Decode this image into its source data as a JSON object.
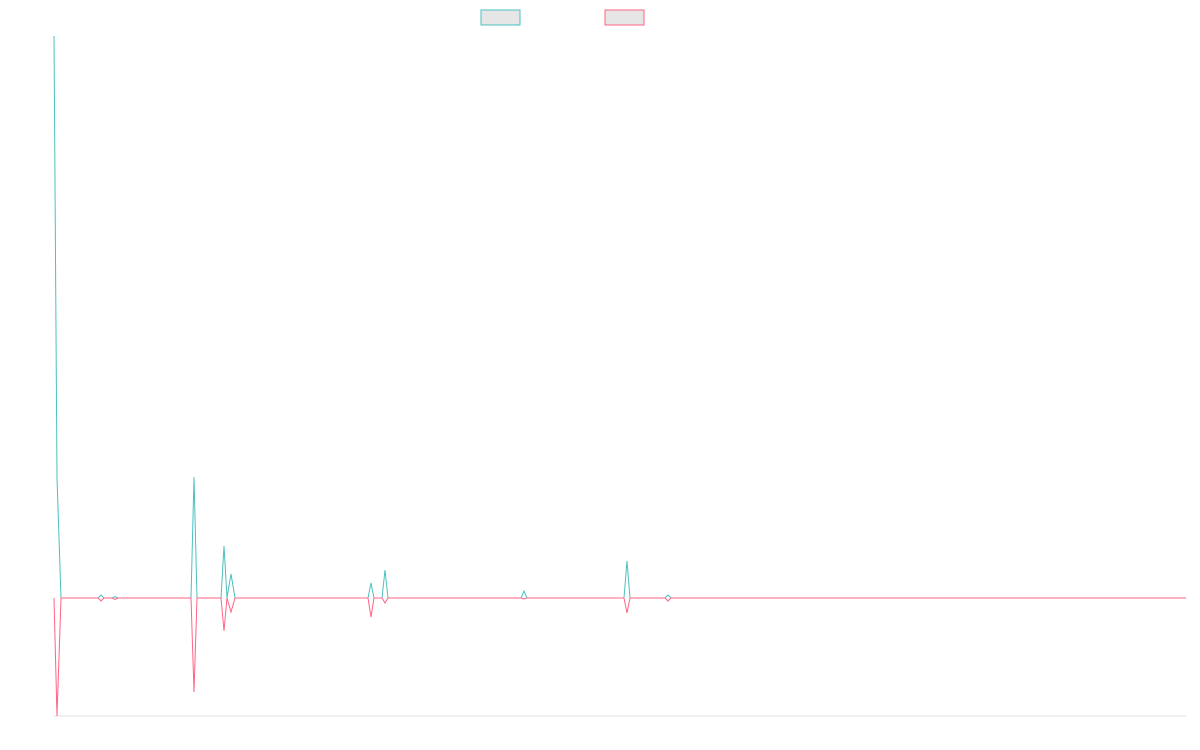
{
  "chart_data": {
    "type": "line",
    "x": [
      0,
      3,
      7,
      44,
      47,
      50,
      58,
      61,
      64,
      137,
      140,
      143,
      167,
      170,
      173,
      177,
      181,
      314,
      317,
      320,
      328,
      331,
      334,
      467,
      470,
      473,
      570,
      573,
      576,
      611,
      614,
      617,
      1132
    ],
    "series": [
      {
        "color": "#4bc0c0",
        "values": [
          562,
          120,
          0,
          0,
          3,
          0,
          0,
          1.5,
          0,
          0,
          121,
          0,
          0,
          52,
          0,
          24,
          0,
          0,
          15,
          0,
          0,
          28,
          0,
          0,
          7,
          0,
          0,
          37,
          0,
          0,
          3,
          0,
          0
        ]
      },
      {
        "color": "#ff6384",
        "values": [
          0,
          -118,
          0,
          0,
          -3,
          0,
          0,
          -1.5,
          0,
          0,
          -94,
          0,
          0,
          -33,
          0,
          -14,
          0,
          0,
          -19,
          0,
          0,
          -5,
          0,
          0,
          -1,
          0,
          0,
          -15,
          0,
          0,
          -3,
          0,
          0
        ]
      }
    ],
    "xlim": [
      0,
      1132
    ],
    "ylim": [
      -118,
      562
    ],
    "legend": "top"
  }
}
